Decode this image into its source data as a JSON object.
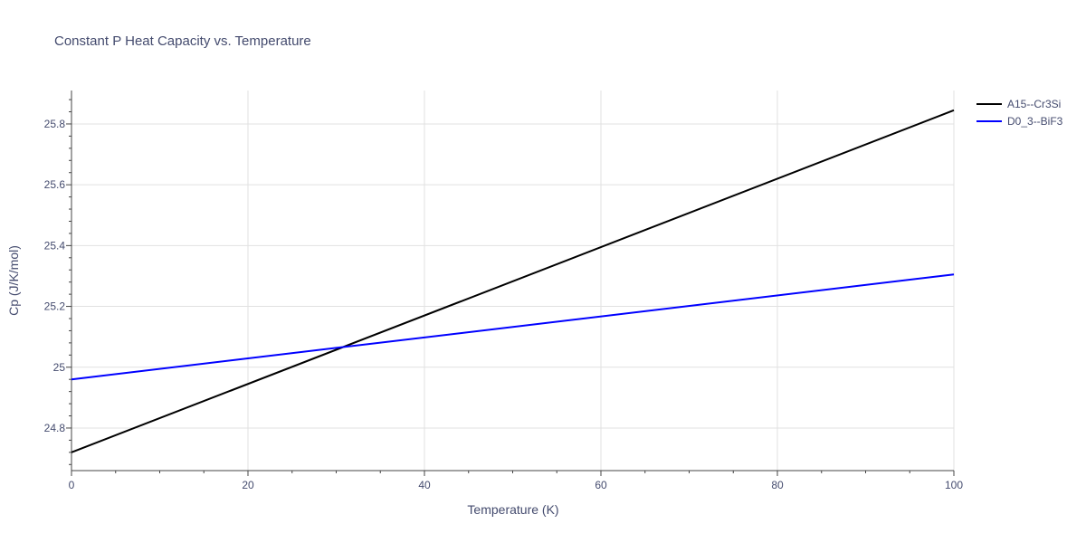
{
  "chart_data": {
    "type": "line",
    "title": "Constant P Heat Capacity vs. Temperature",
    "xlabel": "Temperature (K)",
    "ylabel": "Cp (J/K/mol)",
    "xlim": [
      0,
      100
    ],
    "ylim": [
      24.66,
      25.91
    ],
    "x_ticks": [
      0,
      20,
      40,
      60,
      80,
      100
    ],
    "x_tick_labels": [
      "0",
      "20",
      "40",
      "60",
      "80",
      "100"
    ],
    "y_ticks": [
      24.8,
      25.0,
      25.2,
      25.4,
      25.6,
      25.8
    ],
    "y_tick_labels": [
      "24.8",
      "25",
      "25.2",
      "25.4",
      "25.6",
      "25.8"
    ],
    "grid": true,
    "legend_position": "top-right",
    "series": [
      {
        "name": "A15--Cr3Si",
        "color": "#000000",
        "x": [
          0,
          100
        ],
        "y": [
          24.72,
          25.845
        ]
      },
      {
        "name": "D0_3--BiF3",
        "color": "#0000ff",
        "x": [
          0,
          100
        ],
        "y": [
          24.96,
          25.305
        ]
      }
    ]
  }
}
